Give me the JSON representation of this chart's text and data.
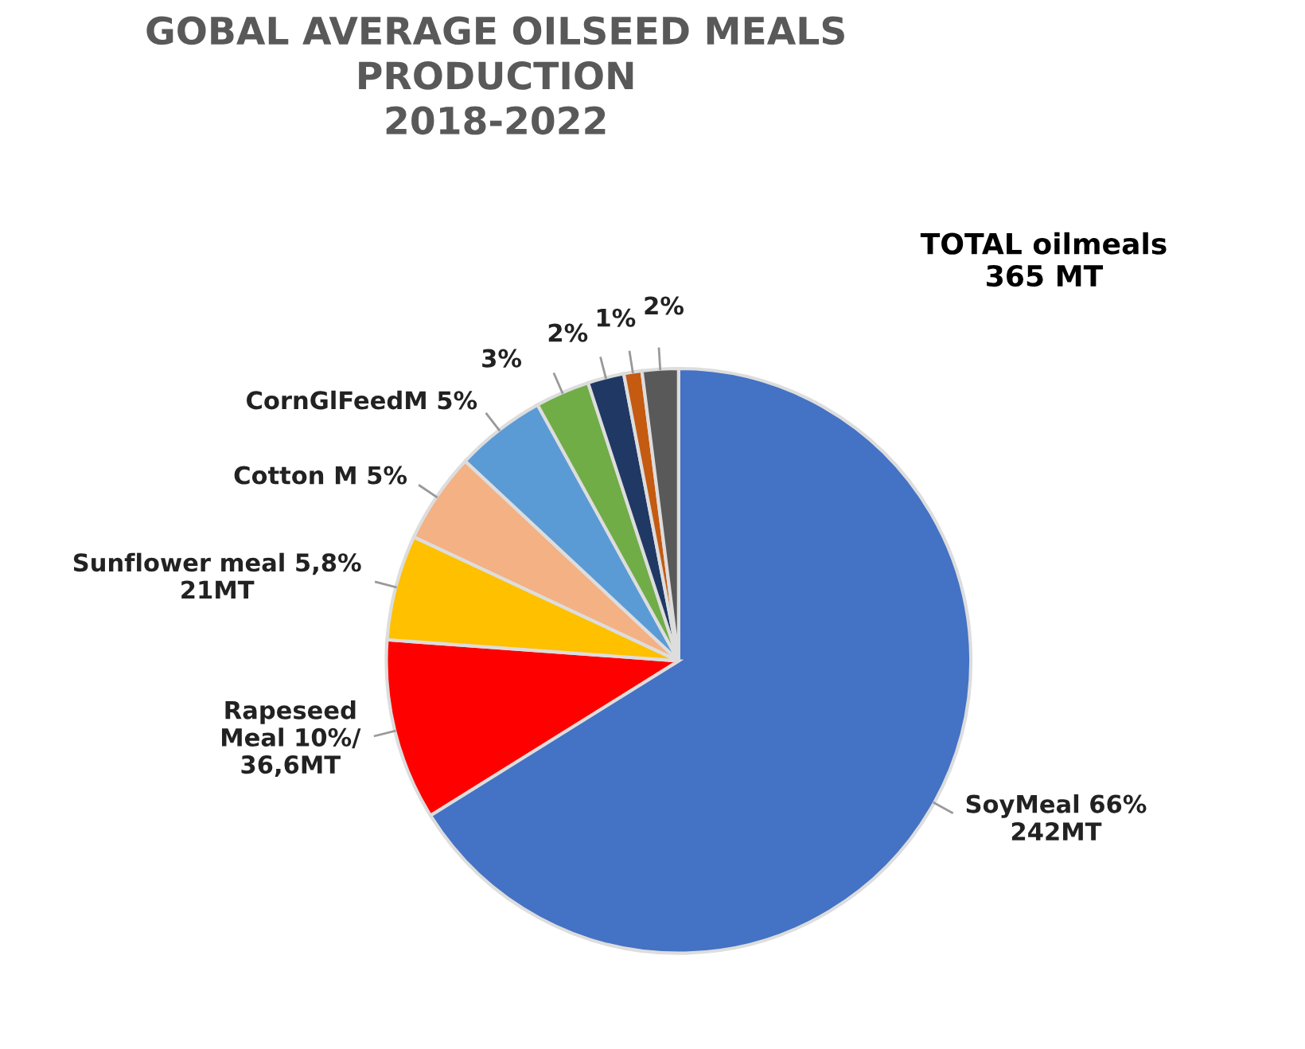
{
  "chart_data": {
    "type": "pie",
    "title": "GOBAL AVERAGE OILSEED MEALS\nPRODUCTION\n2018-2022",
    "categories": [
      "SoyMeal 66%\n242MT",
      "Rapeseed\nMeal 10%/\n36,6MT",
      "Sunflower meal 5,8%\n21MT",
      "Cotton M 5%",
      "CornGlFeedM 5%",
      null,
      null,
      null,
      null
    ],
    "values": [
      66,
      10,
      5.8,
      5,
      5,
      3,
      2,
      1,
      2
    ],
    "value_labels": [
      null,
      null,
      null,
      null,
      null,
      "3%",
      "2%",
      "1%",
      "2%"
    ],
    "colors": [
      "#4472c4",
      "#ff0000",
      "#ffc000",
      "#f4b183",
      "#5b9bd5",
      "#70ad47",
      "#203864",
      "#c55a11",
      "#595959"
    ],
    "annotations": [
      "TOTAL oilmeals\n365 MT"
    ]
  }
}
